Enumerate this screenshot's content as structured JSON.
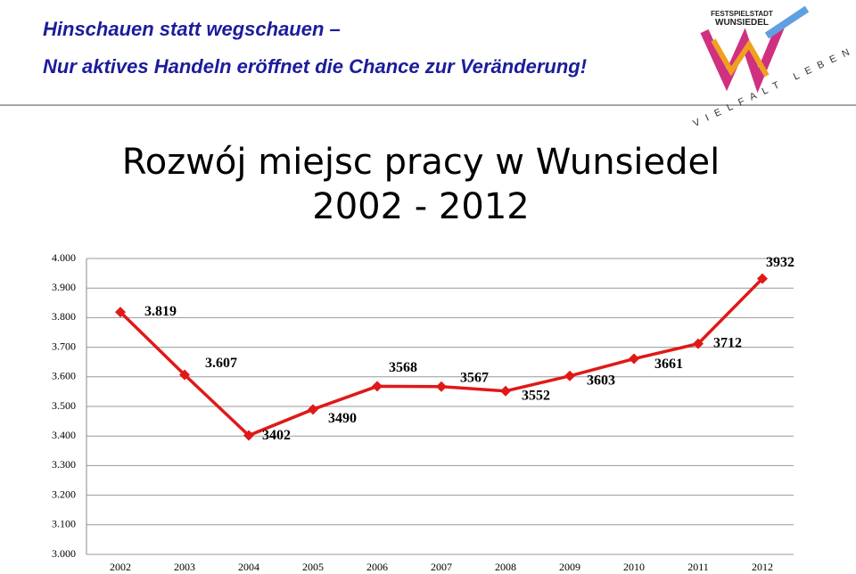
{
  "header": {
    "line1": "Hinschauen statt wegschauen –",
    "line2": "Nur aktives Handeln eröffnet die Chance zur Veränderung!"
  },
  "logo": {
    "top": "FESTSPIELSTADT",
    "name": "WUNSIEDEL",
    "motto": "VIELFALT LEBEN"
  },
  "chart_data": {
    "type": "line",
    "title": "Rozwój miejsc pracy  w Wunsiedel",
    "subtitle": "2002 - 2012",
    "categories": [
      "2002",
      "2003",
      "2004",
      "2005",
      "2006",
      "2007",
      "2008",
      "2009",
      "2010",
      "2011",
      "2012"
    ],
    "values": [
      3819,
      3607,
      3402,
      3490,
      3568,
      3567,
      3552,
      3603,
      3661,
      3712,
      3932
    ],
    "value_labels": [
      "3.819",
      "3.607",
      "3402",
      "3490",
      "3568",
      "3567",
      "3552",
      "3603",
      "3661",
      "3712",
      "3932"
    ],
    "color": "#e01818",
    "ylim": [
      3000,
      4000
    ],
    "yticks": [
      {
        "value": 3000,
        "label": "3.000"
      },
      {
        "value": 3100,
        "label": "3.100"
      },
      {
        "value": 3200,
        "label": "3.200"
      },
      {
        "value": 3300,
        "label": "3.300"
      },
      {
        "value": 3400,
        "label": "3.400"
      },
      {
        "value": 3500,
        "label": "3.500"
      },
      {
        "value": 3600,
        "label": "3.600"
      },
      {
        "value": 3700,
        "label": "3.700"
      },
      {
        "value": 3800,
        "label": "3.800"
      },
      {
        "value": 3900,
        "label": "3.900"
      },
      {
        "value": 4000,
        "label": "4.000"
      }
    ],
    "grid": true
  }
}
